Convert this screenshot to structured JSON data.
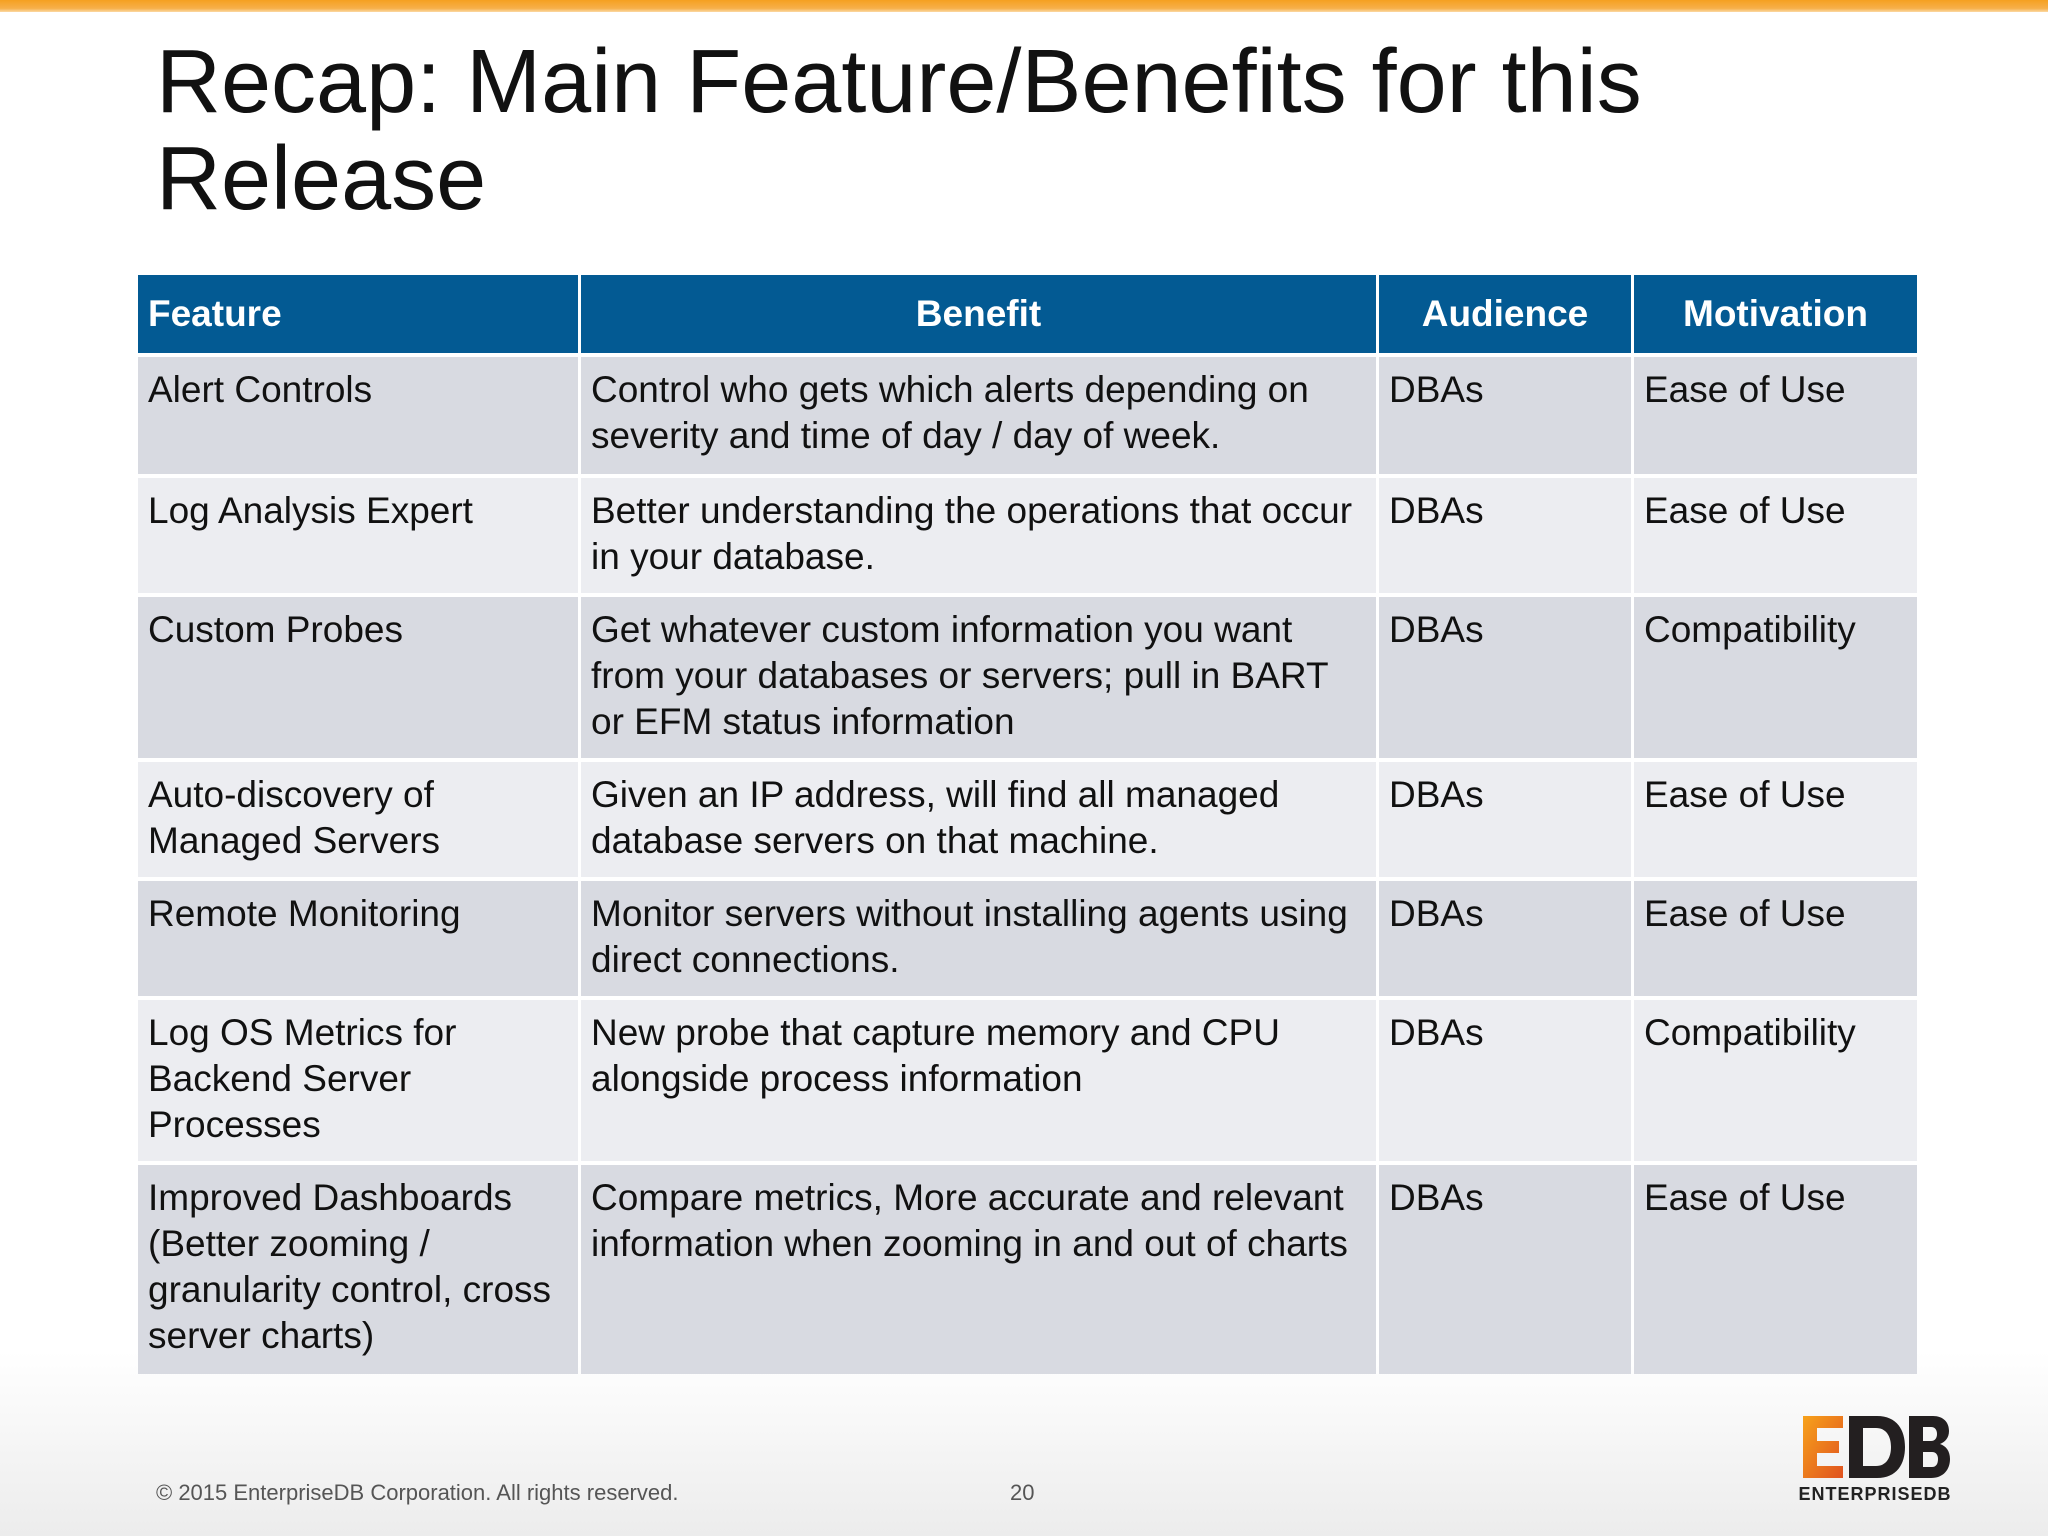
{
  "slide": {
    "title": "Recap: Main Feature/Benefits for this Release",
    "page_number": "20",
    "copyright": "© 2015 EnterpriseDB Corporation. All rights reserved.",
    "logo_text": "EDB",
    "logo_subtext": "ENTERPRISEDB",
    "logo_colors": {
      "orange": "#f08a1c",
      "dark": "#231f20"
    }
  },
  "table": {
    "header_color": "#035a93",
    "columns": [
      "Feature",
      "Benefit",
      "Audience",
      "Motivation"
    ],
    "rows": [
      {
        "feature": "Alert Controls",
        "benefit": "Control who gets which alerts depending on severity and time of day / day of week.",
        "audience": "DBAs",
        "motivation": "Ease of Use"
      },
      {
        "feature": "Log Analysis Expert",
        "benefit": "Better understanding the operations that occur in your database.",
        "audience": "DBAs",
        "motivation": "Ease of Use"
      },
      {
        "feature": "Custom Probes",
        "benefit": "Get whatever custom information you want from your databases or servers; pull in BART or EFM status information",
        "audience": "DBAs",
        "motivation": "Compatibility"
      },
      {
        "feature": "Auto-discovery of Managed Servers",
        "benefit": "Given an IP address, will find all managed database servers on that machine.",
        "audience": "DBAs",
        "motivation": "Ease of Use"
      },
      {
        "feature": "Remote Monitoring",
        "benefit": "Monitor servers without installing agents using direct connections.",
        "audience": "DBAs",
        "motivation": "Ease of Use"
      },
      {
        "feature": "Log OS Metrics for Backend Server Processes",
        "benefit": "New probe that capture memory and CPU alongside process information",
        "audience": "DBAs",
        "motivation": "Compatibility"
      },
      {
        "feature": "Improved Dashboards (Better zooming / granularity control, cross server charts)",
        "benefit": "Compare metrics, More accurate and relevant information when zooming in and out of charts",
        "audience": "DBAs",
        "motivation": "Ease of Use"
      }
    ]
  }
}
